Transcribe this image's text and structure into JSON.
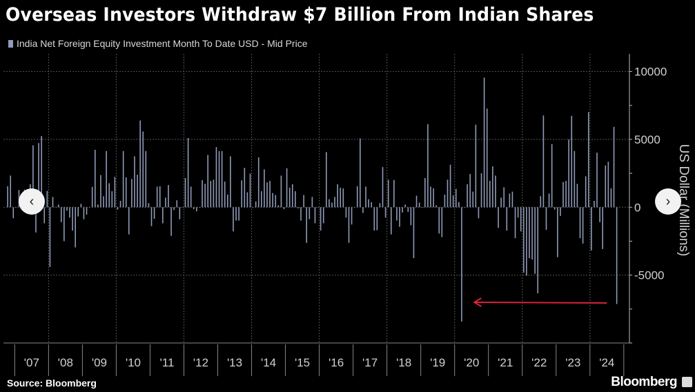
{
  "chart_data": {
    "type": "bar",
    "title": "Overseas Investors Withdraw $7 Billion From Indian Shares",
    "legend": [
      "India Net Foreign Equity Investment Month To Date USD - Mid Price"
    ],
    "ylabel": "US Dollar (Millions)",
    "xlabel": "",
    "ylim": [
      -10000,
      11300
    ],
    "xlim": [
      "2006-09",
      "2025-03"
    ],
    "y_ticks": [
      10000,
      5000,
      0,
      -5000
    ],
    "x_tick_labels": [
      "'07",
      "'08",
      "'09",
      "'10",
      "'11",
      "'12",
      "'13",
      "'14",
      "'15",
      "'16",
      "'17",
      "'18",
      "'19",
      "'20",
      "'21",
      "'22",
      "'23",
      "'24"
    ],
    "grid": true,
    "y_axis_side": "right",
    "bar_color": "#8f9bb8",
    "start_month": "2006-10",
    "values": [
      1550,
      2330,
      -810,
      -30,
      1270,
      -200,
      1300,
      600,
      1700,
      4560,
      -1860,
      4730,
      5240,
      -1180,
      1200,
      -4400,
      760,
      30,
      200,
      -1100,
      -2500,
      -250,
      -760,
      -1720,
      -2960,
      -680,
      250,
      -880,
      -540,
      0,
      1500,
      4230,
      200,
      2370,
      810,
      4140,
      1770,
      1180,
      2230,
      -170,
      470,
      4140,
      2200,
      -2000,
      2080,
      3750,
      2400,
      6390,
      5580,
      4140,
      300,
      -1390,
      -850,
      1520,
      1550,
      -1180,
      710,
      1640,
      -2110,
      -200,
      510,
      -880,
      0,
      2150,
      5100,
      1520,
      -140,
      -300,
      0,
      2000,
      1720,
      3850,
      1940,
      2030,
      4430,
      4140,
      4140,
      1890,
      930,
      3750,
      -1780,
      -980,
      -980,
      1980,
      2900,
      1100,
      2480,
      0,
      420,
      3670,
      1180,
      2790,
      1830,
      1940,
      1050,
      900,
      140,
      2330,
      -140,
      2870,
      1440,
      1690,
      1180,
      -80,
      -980,
      900,
      -2620,
      -880,
      760,
      -1180,
      0,
      -1720,
      -1180,
      4060,
      590,
      340,
      760,
      1690,
      1440,
      1390,
      -760,
      -2620,
      -1270,
      0,
      1550,
      5070,
      -420,
      1520,
      590,
      370,
      -1720,
      -1690,
      300,
      2960,
      -760,
      2030,
      -2000,
      2000,
      -980,
      -1440,
      -390,
      200,
      -340,
      -1320,
      -3750,
      850,
      340,
      -30,
      2150,
      6120,
      1520,
      1390,
      140,
      -1940,
      -2200,
      930,
      2030,
      3130,
      880,
      1350,
      370,
      -8420,
      0,
      1690,
      2450,
      1150,
      6080,
      -810,
      2500,
      9550,
      7270,
      1940,
      3010,
      2330,
      -1520,
      710,
      1470,
      -1720,
      1010,
      1150,
      -2280,
      -760,
      -1780,
      -4820,
      -5040,
      -3750,
      -3850,
      -4900,
      -6340,
      810,
      6760,
      -1660,
      1010,
      4650,
      -170,
      -3680,
      -640,
      1860,
      1940,
      4990,
      6730,
      4140,
      1720,
      -2280,
      -2670,
      2280,
      7010,
      -3180,
      470,
      4020,
      -1100,
      -3080,
      3080,
      3350,
      1390,
      5920,
      -7130
    ],
    "annotations": [
      {
        "type": "arrow",
        "color": "#d9233a",
        "direction": "left",
        "from_month": "2024-07",
        "to_month": "2020-08",
        "y": -7000
      }
    ],
    "source": "Source: Bloomberg"
  },
  "footer": {
    "source": "Source: Bloomberg",
    "brand": "Bloomberg"
  },
  "nav": {
    "prev_icon": "‹",
    "next_icon": "›"
  }
}
